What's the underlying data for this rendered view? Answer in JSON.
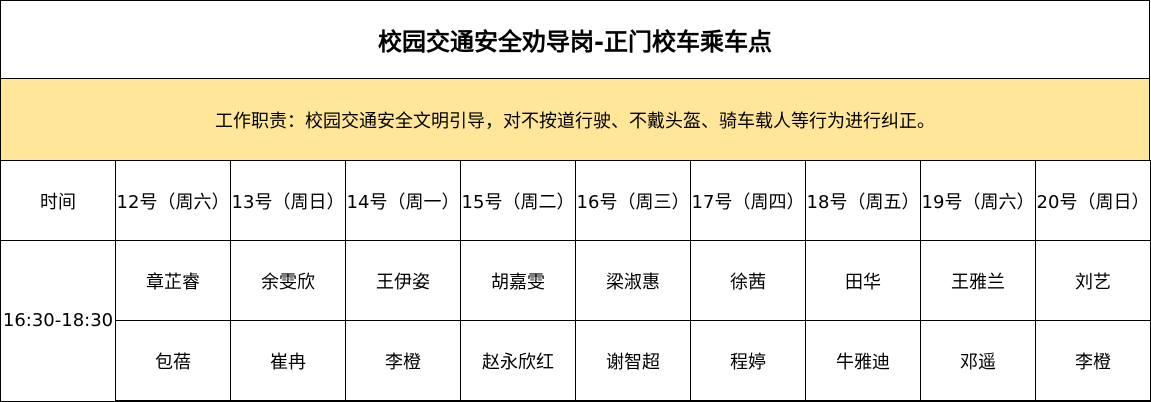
{
  "title": "校园交通安全劝导岗-正门校车乘车点",
  "duty": "工作职责：校园交通安全文明引导，对不按道行驶、不戴头盔、骑车载人等行为进行纠正。",
  "header": {
    "time_label": "时间",
    "days": [
      "12号（周六）",
      "13号（周日）",
      "14号（周一）",
      "15号（周二）",
      "16号（周三）",
      "17号（周四）",
      "18号（周五）",
      "19号（周六）",
      "20号（周日）"
    ]
  },
  "time_slot": "16:30-18:30",
  "row1": [
    "章芷睿",
    "余雯欣",
    "王伊姿",
    "胡嘉雯",
    "梁淑惠",
    "徐茜",
    "田华",
    "王雅兰",
    "刘艺"
  ],
  "row2": [
    "包蓓",
    "崔冉",
    "李橙",
    "赵永欣红",
    "谢智超",
    "程婷",
    "牛雅迪",
    "邓遥",
    "李橙"
  ],
  "colors": {
    "duty_bg": "#ffe699"
  }
}
